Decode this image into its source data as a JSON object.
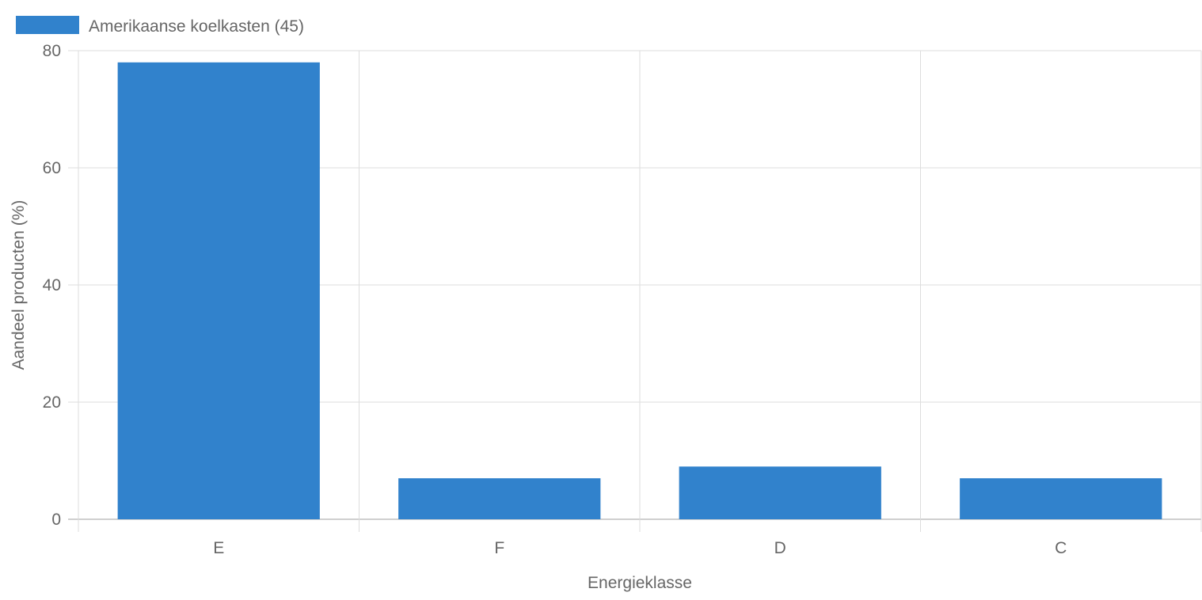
{
  "chart_data": {
    "type": "bar",
    "categories": [
      "E",
      "F",
      "D",
      "C"
    ],
    "series": [
      {
        "name": "Amerikaanse koelkasten (45)",
        "values": [
          78,
          7,
          9,
          7
        ],
        "color": "#3182cc"
      }
    ],
    "xlabel": "Energieklasse",
    "ylabel": "Aandeel producten (%)",
    "ylim": [
      0,
      80
    ],
    "yticks": [
      0,
      20,
      40,
      60,
      80
    ],
    "grid": true,
    "legend_position": "top-left"
  }
}
